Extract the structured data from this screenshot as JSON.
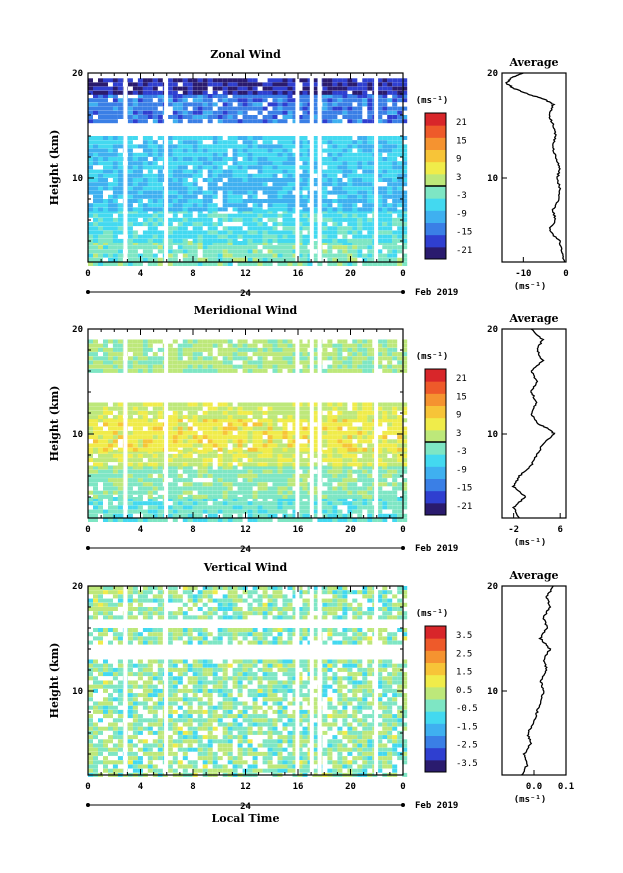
{
  "figure": {
    "xlabel": "Local Time",
    "date_label": "Feb 2019",
    "day_label": "24"
  },
  "chart_data": [
    {
      "type": "heatmap",
      "title": "Zonal Wind",
      "ylabel": "Height (km)",
      "x_ticks": [
        "0",
        "4",
        "8",
        "12",
        "16",
        "20",
        "0"
      ],
      "y_ticks": [
        "20",
        "10"
      ],
      "xlim": [
        0,
        24
      ],
      "ylim": [
        2,
        20
      ],
      "colorbar": {
        "unit": "(ms⁻¹)",
        "ticks": [
          "21",
          "15",
          "9",
          "3",
          "-3",
          "-9",
          "-15",
          "-21"
        ],
        "range": [
          -24,
          24
        ],
        "zero_line": true
      },
      "bands": [
        {
          "y0": 2,
          "y1": 4,
          "value": -2
        },
        {
          "y0": 4,
          "y1": 7,
          "value": -5
        },
        {
          "y0": 7,
          "y1": 10,
          "value": -9
        },
        {
          "y0": 10,
          "y1": 14,
          "value": -7
        },
        {
          "y0": 15.5,
          "y1": 18,
          "value": -14
        },
        {
          "y0": 18,
          "y1": 19.5,
          "value": -20
        }
      ],
      "average": {
        "title": "Average",
        "xlabel": "(ms⁻¹)",
        "x_ticks": [
          "-10",
          "0"
        ],
        "xlim": [
          -15,
          0
        ],
        "y_ticks": [
          "20",
          "10"
        ],
        "profile": [
          [
            2,
            -0.5
          ],
          [
            3,
            -1
          ],
          [
            4,
            -1.5
          ],
          [
            5,
            -4
          ],
          [
            6,
            -2.5
          ],
          [
            7,
            -3
          ],
          [
            8,
            -1.5
          ],
          [
            9,
            -1.5
          ],
          [
            10,
            -2
          ],
          [
            11,
            -1.5
          ],
          [
            12,
            -2.5
          ],
          [
            13,
            -3
          ],
          [
            14,
            -2.5
          ],
          [
            15,
            -3
          ],
          [
            16,
            -4
          ],
          [
            17,
            -3
          ],
          [
            17.5,
            -5
          ],
          [
            18,
            -9
          ],
          [
            18.5,
            -12
          ],
          [
            19,
            -14
          ],
          [
            19.5,
            -13
          ],
          [
            20,
            -10
          ]
        ]
      }
    },
    {
      "type": "heatmap",
      "title": "Meridional Wind",
      "ylabel": "Height (km)",
      "x_ticks": [
        "0",
        "4",
        "8",
        "12",
        "16",
        "20",
        "0"
      ],
      "y_ticks": [
        "20",
        "10"
      ],
      "xlim": [
        0,
        24
      ],
      "ylim": [
        2,
        20
      ],
      "colorbar": {
        "unit": "(ms⁻¹)",
        "ticks": [
          "21",
          "15",
          "9",
          "3",
          "-3",
          "-9",
          "-15",
          "-21"
        ],
        "range": [
          -24,
          24
        ],
        "zero_line": true
      },
      "bands": [
        {
          "y0": 2,
          "y1": 4,
          "value": -3
        },
        {
          "y0": 4,
          "y1": 7,
          "value": -1
        },
        {
          "y0": 7,
          "y1": 8.5,
          "value": 3
        },
        {
          "y0": 8.5,
          "y1": 11.5,
          "value": 6
        },
        {
          "y0": 11.5,
          "y1": 13,
          "value": 3
        },
        {
          "y0": 16,
          "y1": 19,
          "value": 1
        }
      ],
      "average": {
        "title": "Average",
        "xlabel": "(ms⁻¹)",
        "x_ticks": [
          "-2",
          "6"
        ],
        "xlim": [
          -4,
          7
        ],
        "y_ticks": [
          "20",
          "10"
        ],
        "profile": [
          [
            2,
            -1
          ],
          [
            3,
            -2
          ],
          [
            4,
            0
          ],
          [
            5,
            -2
          ],
          [
            6,
            -1
          ],
          [
            7,
            1
          ],
          [
            8,
            2
          ],
          [
            9,
            3
          ],
          [
            10,
            5
          ],
          [
            10.5,
            4
          ],
          [
            11,
            2
          ],
          [
            12,
            1
          ],
          [
            13,
            2
          ],
          [
            14,
            1
          ],
          [
            15,
            2
          ],
          [
            16,
            1
          ],
          [
            17,
            3
          ],
          [
            18,
            2
          ],
          [
            19,
            3
          ],
          [
            20,
            1
          ]
        ]
      }
    },
    {
      "type": "heatmap",
      "title": "Vertical Wind",
      "ylabel": "Height (km)",
      "x_ticks": [
        "0",
        "4",
        "8",
        "12",
        "16",
        "20",
        "0"
      ],
      "y_ticks": [
        "20",
        "10"
      ],
      "xlim": [
        0,
        24
      ],
      "ylim": [
        2,
        20
      ],
      "colorbar": {
        "unit": "(ms⁻¹)",
        "ticks": [
          "3.5",
          "2.5",
          "1.5",
          "0.5",
          "-0.5",
          "-1.5",
          "-2.5",
          "-3.5"
        ],
        "range": [
          -4,
          4
        ],
        "zero_line": false
      },
      "bands": [
        {
          "y0": 2,
          "y1": 13,
          "value": -0.1
        },
        {
          "y0": 14.5,
          "y1": 16,
          "value": -0.1
        },
        {
          "y0": 17,
          "y1": 20,
          "value": -0.1
        }
      ],
      "average": {
        "title": "Average",
        "xlabel": "(ms⁻¹)",
        "x_ticks": [
          "0.0",
          "0.1"
        ],
        "xlim": [
          -0.1,
          0.1
        ],
        "y_ticks": [
          "20",
          "10"
        ],
        "profile": [
          [
            2,
            -0.04
          ],
          [
            3,
            -0.02
          ],
          [
            4,
            -0.03
          ],
          [
            5,
            -0.01
          ],
          [
            6,
            -0.02
          ],
          [
            7,
            0
          ],
          [
            8,
            0.01
          ],
          [
            9,
            0.02
          ],
          [
            10,
            0.03
          ],
          [
            11,
            0.02
          ],
          [
            12,
            0.04
          ],
          [
            13,
            0.03
          ],
          [
            14,
            0.05
          ],
          [
            15,
            0.02
          ],
          [
            16,
            0.04
          ],
          [
            17,
            0.03
          ],
          [
            18,
            0.05
          ],
          [
            19,
            0.04
          ],
          [
            20,
            0.06
          ]
        ]
      }
    }
  ],
  "colormap": [
    "#2a1b6e",
    "#2f3fd0",
    "#3a7fe6",
    "#3fb0f0",
    "#43d9f0",
    "#7ee6c4",
    "#bde87a",
    "#f0ec4a",
    "#f7c438",
    "#f59330",
    "#ee5a2a",
    "#d8262a"
  ],
  "gaps_hours": [
    2.7,
    5.8,
    15.8,
    16.9,
    17.5,
    21.8
  ]
}
